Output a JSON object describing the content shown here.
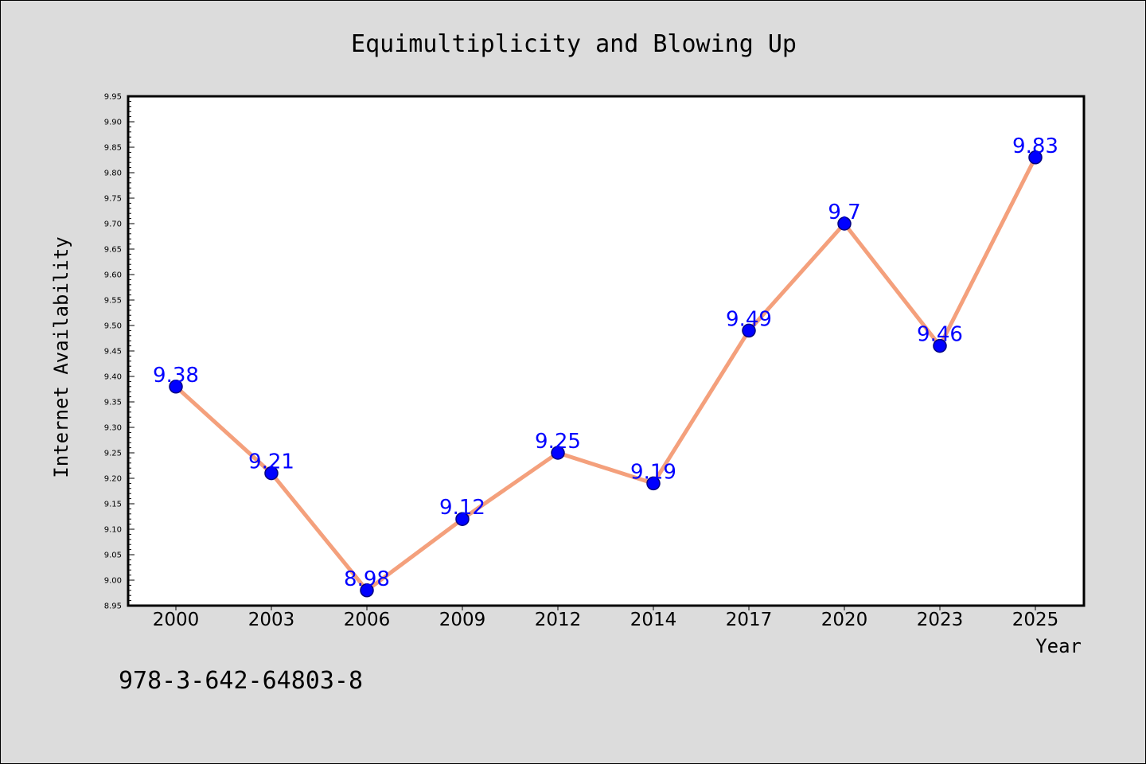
{
  "chart_data": {
    "type": "line",
    "title": "Equimultiplicity and Blowing Up",
    "xlabel": "Year",
    "ylabel": "Internet Availability",
    "categories": [
      "2000",
      "2003",
      "2006",
      "2009",
      "2012",
      "2014",
      "2017",
      "2020",
      "2023",
      "2025"
    ],
    "series": [
      {
        "values": [
          9.38,
          9.21,
          8.98,
          9.12,
          9.25,
          9.19,
          9.49,
          9.7,
          9.46,
          9.83
        ],
        "labels": [
          "9.38",
          "9.21",
          "8.98",
          "9.12",
          "9.25",
          "9.19",
          "9.49",
          "9.7",
          "9.46",
          "9.83"
        ]
      }
    ],
    "ylim": [
      8.95,
      9.95
    ],
    "yticks": [
      "8.95",
      "9.00",
      "9.05",
      "9.10",
      "9.15",
      "9.20",
      "9.25",
      "9.30",
      "9.35",
      "9.40",
      "9.45",
      "9.50",
      "9.55",
      "9.60",
      "9.65",
      "9.70",
      "9.75",
      "9.80",
      "9.85",
      "9.90",
      "9.95"
    ],
    "grid": false,
    "legend": "none",
    "colors": {
      "line": "#f4a07c",
      "marker_fill": "#0000ff",
      "marker_edge": "#000080",
      "data_label": "#0000ff",
      "plot_bg": "#ffffff",
      "figure_bg": "#dcdcdc"
    }
  },
  "footer": {
    "text": "978-3-642-64803-8"
  }
}
